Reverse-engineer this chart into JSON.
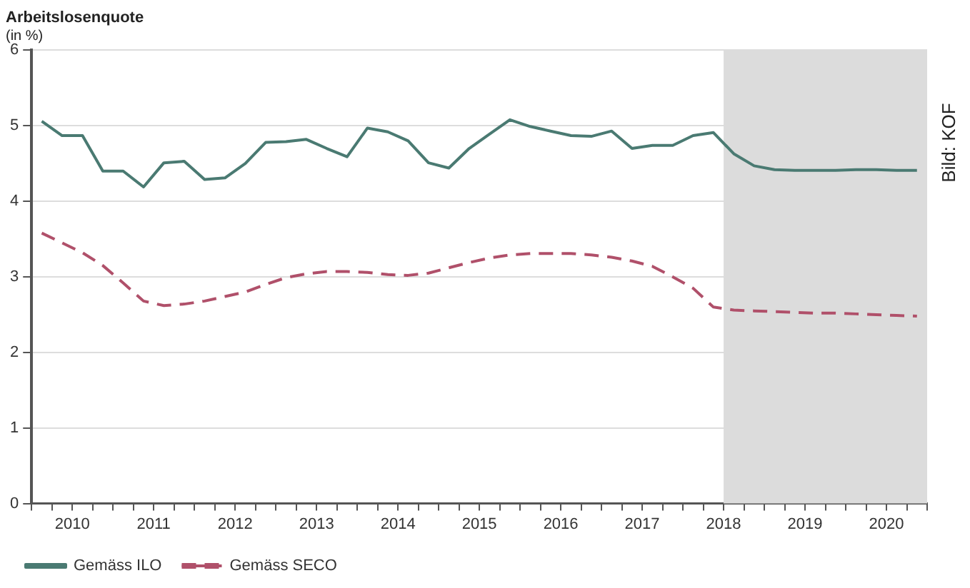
{
  "chart_data": {
    "type": "line",
    "title": "Arbeitslosenquote",
    "subtitle": "(in %)",
    "annotations": [
      "Bild: KOF"
    ],
    "xlim": [
      2010,
      2021
    ],
    "ylim": [
      0,
      6
    ],
    "yticks": [
      0,
      1,
      2,
      3,
      4,
      5,
      6
    ],
    "xticks": [
      {
        "value": 2010,
        "label": null
      },
      {
        "value": 2010.25,
        "label": null
      },
      {
        "value": 2010.5,
        "label": "2010"
      },
      {
        "value": 2010.75,
        "label": null
      },
      {
        "value": 2011,
        "label": null
      },
      {
        "value": 2011.25,
        "label": null
      },
      {
        "value": 2011.5,
        "label": "2011"
      },
      {
        "value": 2011.75,
        "label": null
      },
      {
        "value": 2012,
        "label": null
      },
      {
        "value": 2012.25,
        "label": null
      },
      {
        "value": 2012.5,
        "label": "2012"
      },
      {
        "value": 2012.75,
        "label": null
      },
      {
        "value": 2013,
        "label": null
      },
      {
        "value": 2013.25,
        "label": null
      },
      {
        "value": 2013.5,
        "label": "2013"
      },
      {
        "value": 2013.75,
        "label": null
      },
      {
        "value": 2014,
        "label": null
      },
      {
        "value": 2014.25,
        "label": null
      },
      {
        "value": 2014.5,
        "label": "2014"
      },
      {
        "value": 2014.75,
        "label": null
      },
      {
        "value": 2015,
        "label": null
      },
      {
        "value": 2015.25,
        "label": null
      },
      {
        "value": 2015.5,
        "label": "2015"
      },
      {
        "value": 2015.75,
        "label": null
      },
      {
        "value": 2016,
        "label": null
      },
      {
        "value": 2016.25,
        "label": null
      },
      {
        "value": 2016.5,
        "label": "2016"
      },
      {
        "value": 2016.75,
        "label": null
      },
      {
        "value": 2017,
        "label": null
      },
      {
        "value": 2017.25,
        "label": null
      },
      {
        "value": 2017.5,
        "label": "2017"
      },
      {
        "value": 2017.75,
        "label": null
      },
      {
        "value": 2018,
        "label": null
      },
      {
        "value": 2018.25,
        "label": null
      },
      {
        "value": 2018.5,
        "label": "2018"
      },
      {
        "value": 2018.75,
        "label": null
      },
      {
        "value": 2019,
        "label": null
      },
      {
        "value": 2019.25,
        "label": null
      },
      {
        "value": 2019.5,
        "label": "2019"
      },
      {
        "value": 2019.75,
        "label": null
      },
      {
        "value": 2020,
        "label": null
      },
      {
        "value": 2020.25,
        "label": null
      },
      {
        "value": 2020.5,
        "label": "2020"
      },
      {
        "value": 2020.75,
        "label": null
      },
      {
        "value": 2021,
        "label": null
      }
    ],
    "x": [
      2010.125,
      2010.375,
      2010.625,
      2010.875,
      2011.125,
      2011.375,
      2011.625,
      2011.875,
      2012.125,
      2012.375,
      2012.625,
      2012.875,
      2013.125,
      2013.375,
      2013.625,
      2013.875,
      2014.125,
      2014.375,
      2014.625,
      2014.875,
      2015.125,
      2015.375,
      2015.625,
      2015.875,
      2016.125,
      2016.375,
      2016.625,
      2016.875,
      2017.125,
      2017.375,
      2017.625,
      2017.875,
      2018.125,
      2018.375,
      2018.625,
      2018.875,
      2019.125,
      2019.375,
      2019.625,
      2019.875,
      2020.125,
      2020.375,
      2020.625,
      2020.875
    ],
    "series": [
      {
        "name": "Gemäss ILO",
        "color": "#4a7a72",
        "line_style": "solid",
        "values": [
          5.06,
          4.87,
          4.87,
          4.4,
          4.4,
          4.19,
          4.51,
          4.53,
          4.29,
          4.31,
          4.5,
          4.78,
          4.79,
          4.82,
          4.7,
          4.59,
          4.97,
          4.92,
          4.8,
          4.51,
          4.44,
          4.7,
          4.89,
          5.08,
          4.99,
          4.93,
          4.87,
          4.86,
          4.93,
          4.7,
          4.74,
          4.74,
          4.87,
          4.91,
          4.63,
          4.47,
          4.42,
          4.41,
          4.41,
          4.41,
          4.42,
          4.42,
          4.41,
          4.41
        ]
      },
      {
        "name": "Gemäss SECO",
        "color": "#b0506a",
        "line_style": "dashed",
        "values": [
          3.58,
          3.45,
          3.32,
          3.15,
          2.92,
          2.68,
          2.62,
          2.64,
          2.68,
          2.74,
          2.8,
          2.9,
          2.99,
          3.04,
          3.07,
          3.07,
          3.06,
          3.03,
          3.02,
          3.05,
          3.12,
          3.19,
          3.25,
          3.29,
          3.31,
          3.31,
          3.31,
          3.29,
          3.26,
          3.21,
          3.14,
          3.0,
          2.85,
          2.6,
          2.56,
          2.55,
          2.54,
          2.53,
          2.52,
          2.52,
          2.51,
          2.5,
          2.49,
          2.48
        ]
      }
    ],
    "bands": [
      {
        "axis": "x",
        "from": 2018.5,
        "to": 2021,
        "color": "#dcdcdc"
      }
    ],
    "grid": "y",
    "legend": "bottom left",
    "marker": "none"
  }
}
